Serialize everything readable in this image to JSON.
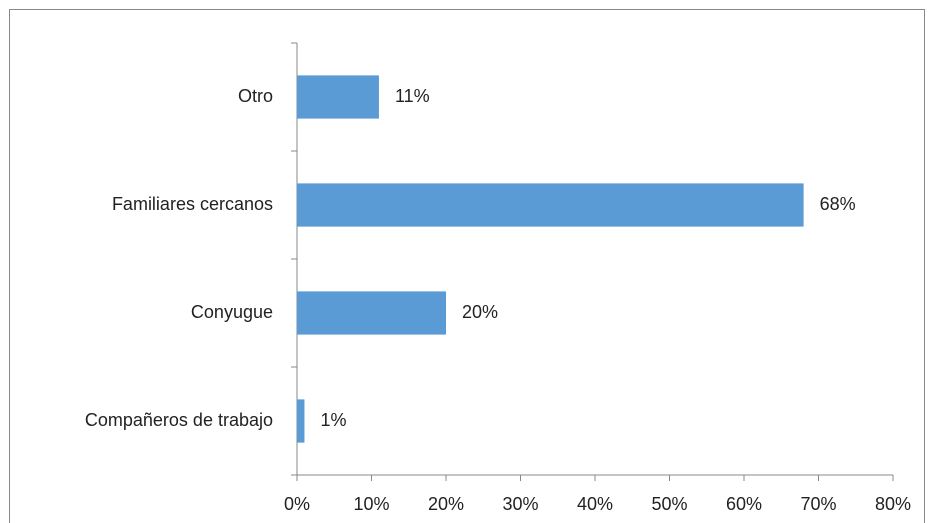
{
  "chart_data": {
    "type": "bar",
    "orientation": "horizontal",
    "categories": [
      "Otro",
      "Familiares cercanos",
      "Conyugue",
      "Compañeros de trabajo"
    ],
    "values": [
      11,
      68,
      20,
      1
    ],
    "value_labels": [
      "11%",
      "68%",
      "20%",
      "1%"
    ],
    "color": "#5b9bd5",
    "xlim": [
      0,
      80
    ],
    "xticks": [
      {
        "value": 0,
        "label": "0%"
      },
      {
        "value": 10,
        "label": "10%"
      },
      {
        "value": 20,
        "label": "20%"
      },
      {
        "value": 30,
        "label": "30%"
      },
      {
        "value": 40,
        "label": "40%"
      },
      {
        "value": 50,
        "label": "50%"
      },
      {
        "value": 60,
        "label": "60%"
      },
      {
        "value": 70,
        "label": "70%"
      },
      {
        "value": 80,
        "label": "80%"
      }
    ],
    "grid": false
  }
}
